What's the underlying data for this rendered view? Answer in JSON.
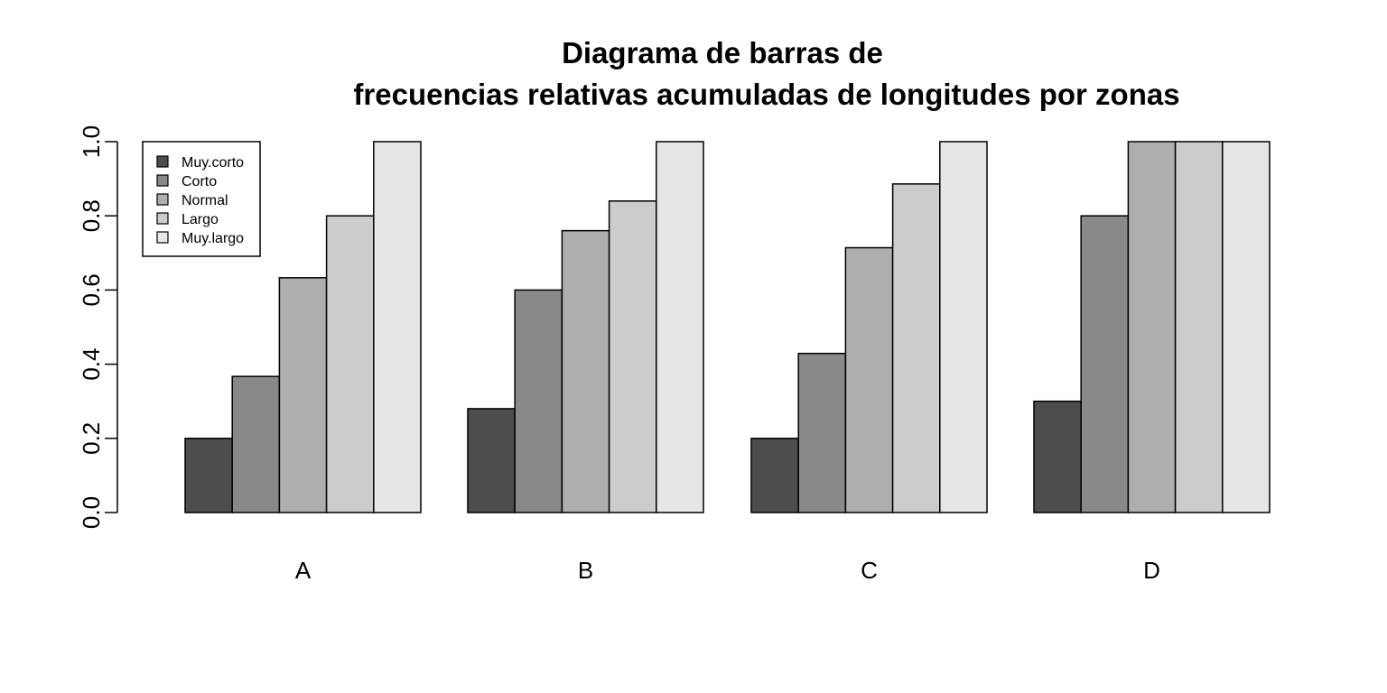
{
  "chart_data": {
    "type": "bar",
    "mode": "grouped",
    "title_lines": [
      "Diagrama de barras de",
      "frecuencias relativas acumuladas de longitudes por zonas"
    ],
    "xlabel": "",
    "ylabel": "",
    "categories": [
      "A",
      "B",
      "C",
      "D"
    ],
    "ylim": [
      0,
      1
    ],
    "yticks": [
      "0.0",
      "0.2",
      "0.4",
      "0.6",
      "0.8",
      "1.0"
    ],
    "ytick_values": [
      0,
      0.2,
      0.4,
      0.6,
      0.8,
      1.0
    ],
    "grid": false,
    "legend_position": "top-left",
    "series": [
      {
        "name": "Muy.corto",
        "color": "#4d4d4d",
        "values": [
          0.2,
          0.28,
          0.2,
          0.3
        ]
      },
      {
        "name": "Corto",
        "color": "#898989",
        "values": [
          0.367,
          0.6,
          0.429,
          0.8
        ]
      },
      {
        "name": "Normal",
        "color": "#aeaeae",
        "values": [
          0.633,
          0.76,
          0.714,
          1.0
        ]
      },
      {
        "name": "Largo",
        "color": "#cccccc",
        "values": [
          0.8,
          0.84,
          0.886,
          1.0
        ]
      },
      {
        "name": "Muy.largo",
        "color": "#e6e6e6",
        "values": [
          1.0,
          1.0,
          1.0,
          1.0
        ]
      }
    ]
  }
}
